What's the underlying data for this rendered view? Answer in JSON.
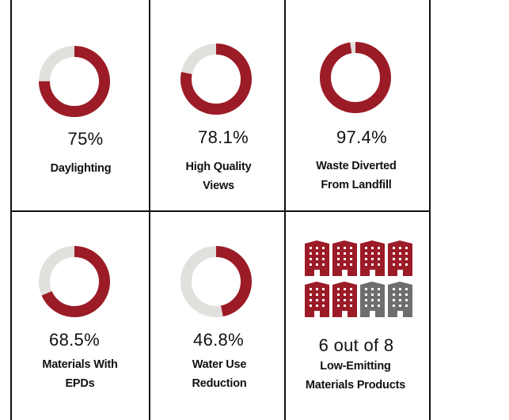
{
  "colors": {
    "accent": "#9b1b27",
    "track": "#e2e0dd",
    "gray_building": "#6d6e70",
    "grid_line": "#111111"
  },
  "metrics": [
    {
      "value": "75%",
      "fraction": 0.75,
      "label_lines": [
        "Daylighting"
      ]
    },
    {
      "value": "78.1%",
      "fraction": 0.781,
      "label_lines": [
        "High Quality",
        "Views"
      ]
    },
    {
      "value": "97.4%",
      "fraction": 0.974,
      "label_lines": [
        "Waste Diverted",
        "From Landfill"
      ]
    },
    {
      "value": "68.5%",
      "fraction": 0.685,
      "label_lines": [
        "Materials With",
        "EPDs"
      ]
    },
    {
      "value": "46.8%",
      "fraction": 0.468,
      "label_lines": [
        "Water Use",
        "Reduction"
      ]
    }
  ],
  "products": {
    "headline": "6 out of 8",
    "label_lines": [
      "Low-Emitting",
      "Materials Products"
    ],
    "filled": 6,
    "total": 8,
    "icon": "building-icon"
  }
}
